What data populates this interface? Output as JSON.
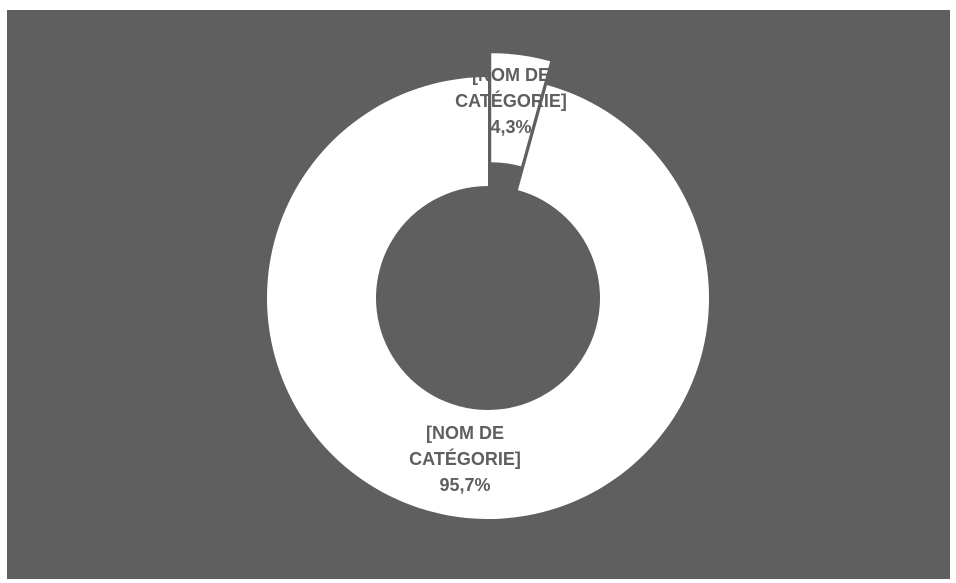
{
  "chart_data": {
    "type": "pie",
    "variant": "doughnut",
    "title": "",
    "exploded_slice": 1,
    "slices": [
      {
        "category": "[NOM DE CATÉGORIE]",
        "value": 95.7,
        "label_lines": [
          "[NOM DE",
          "CATÉGORIE]",
          "95,7%"
        ]
      },
      {
        "category": "[NOM DE CATÉGORIE]",
        "value": 4.3,
        "label_lines": [
          "[NOM DE",
          "CATÉGORIE]",
          "4,3%"
        ]
      }
    ],
    "legend": "none"
  },
  "colors": {
    "plot_background": "#5f5f5f",
    "page_background": "#ffffff",
    "slice_fill": "#ffffff",
    "label_text": "#5f5f5f"
  }
}
